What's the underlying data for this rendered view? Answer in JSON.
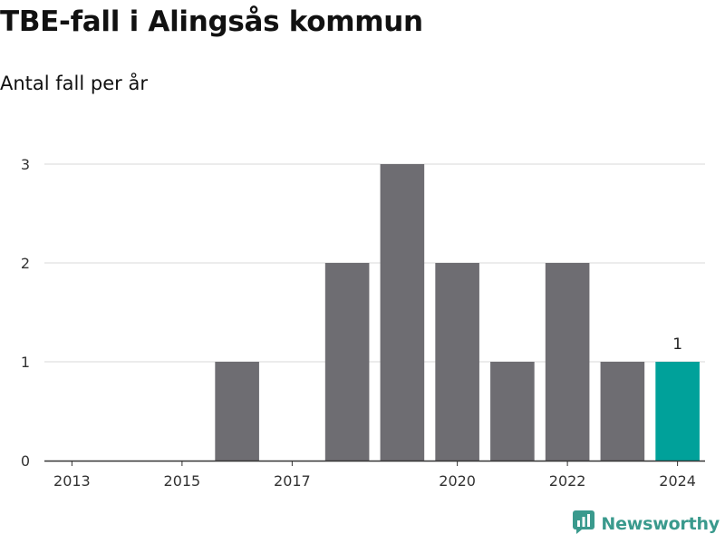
{
  "header": {
    "title": "TBE-fall i Alingsås kommun",
    "subtitle": "Antal fall per år"
  },
  "brand": {
    "name": "Newsworthy",
    "color": "#3a9a8d",
    "icon": "newsworthy-logo-icon"
  },
  "colors": {
    "bar": "#6e6d72",
    "highlight": "#00a19a",
    "grid": "#d9d9d9",
    "axis": "#333333"
  },
  "chart_data": {
    "type": "bar",
    "title": "TBE-fall i Alingsås kommun",
    "subtitle": "Antal fall per år",
    "xlabel": "",
    "ylabel": "",
    "categories": [
      "2013",
      "2014",
      "2015",
      "2016",
      "2017",
      "2018",
      "2019",
      "2020",
      "2021",
      "2022",
      "2023",
      "2024"
    ],
    "values": [
      0,
      0,
      0,
      1,
      0,
      2,
      3,
      2,
      1,
      2,
      1,
      1
    ],
    "highlight_index": 11,
    "x_tick_labels": [
      "2013",
      "2015",
      "2017",
      "2020",
      "2022",
      "2024"
    ],
    "y_ticks": [
      0,
      1,
      2,
      3
    ],
    "ylim": [
      0,
      3
    ],
    "data_labels": [
      {
        "category": "2024",
        "text": "1"
      }
    ],
    "grid": "horizontal",
    "legend": "none"
  }
}
